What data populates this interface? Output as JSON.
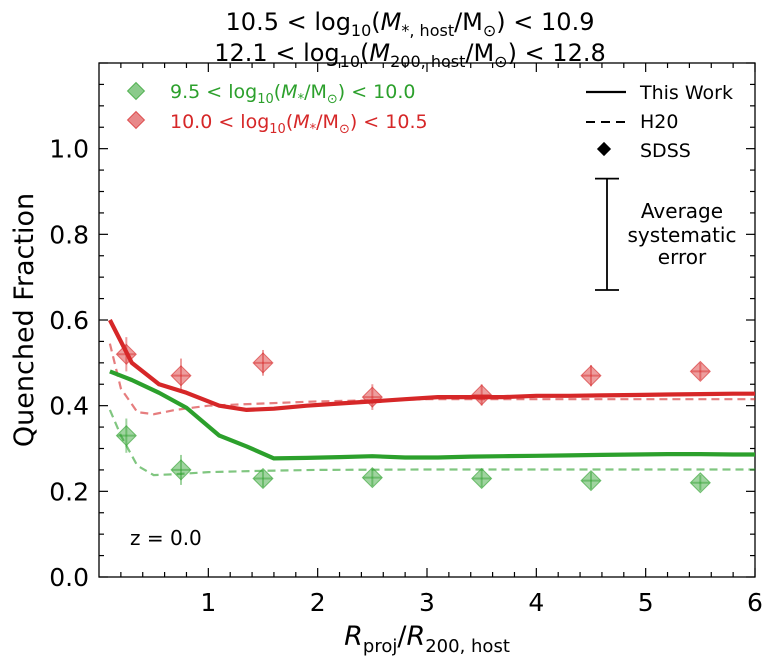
{
  "chart_data": {
    "type": "line",
    "title_lines": [
      "10.5 < log₁₀(M*,host/M⊙) < 10.9",
      "12.1 < log₁₀(M200,host/M⊙) < 12.8"
    ],
    "xlabel": "R_proj / R_200,host",
    "ylabel": "Quenched Fraction",
    "xlim": [
      0.0,
      6.0
    ],
    "ylim": [
      0.0,
      1.2
    ],
    "xticks": [
      1,
      2,
      3,
      4,
      5,
      6
    ],
    "yticks": [
      0.0,
      0.2,
      0.4,
      0.6,
      0.8,
      1.0
    ],
    "annotation": "z = 0.0",
    "error_bar_label": [
      "Average",
      "systematic",
      "error"
    ],
    "error_bar_range": [
      0.67,
      0.93
    ],
    "style_legend": [
      "This Work",
      "H20",
      "SDSS"
    ],
    "series": [
      {
        "name": "9.5 < log10(M*/M⊙) < 10.0",
        "color": "#2ca02c",
        "this_work": {
          "x": [
            0.1,
            0.3,
            0.55,
            0.8,
            1.1,
            1.35,
            1.6,
            1.9,
            2.2,
            2.5,
            2.8,
            3.1,
            3.4,
            3.7,
            4.0,
            4.3,
            4.6,
            4.9,
            5.2,
            5.5,
            5.8,
            6.0
          ],
          "y": [
            0.48,
            0.46,
            0.43,
            0.395,
            0.33,
            0.305,
            0.277,
            0.278,
            0.28,
            0.282,
            0.279,
            0.279,
            0.281,
            0.282,
            0.283,
            0.284,
            0.285,
            0.286,
            0.287,
            0.287,
            0.286,
            0.286
          ]
        },
        "h20": {
          "x": [
            0.1,
            0.2,
            0.35,
            0.5,
            0.7,
            1.0,
            1.5,
            2.0,
            3.0,
            4.0,
            5.0,
            6.0
          ],
          "y": [
            0.39,
            0.33,
            0.26,
            0.238,
            0.24,
            0.245,
            0.248,
            0.25,
            0.251,
            0.251,
            0.251,
            0.251
          ]
        },
        "sdss": {
          "x": [
            0.25,
            0.75,
            1.5,
            2.5,
            3.5,
            4.5,
            5.5
          ],
          "y": [
            0.33,
            0.25,
            0.23,
            0.232,
            0.23,
            0.225,
            0.22
          ],
          "err": [
            0.04,
            0.035,
            0.02,
            0.02,
            0.02,
            0.02,
            0.018
          ]
        }
      },
      {
        "name": "10.0 < log10(M*/M⊙) < 10.5",
        "color": "#d62728",
        "this_work": {
          "x": [
            0.1,
            0.3,
            0.55,
            0.8,
            1.1,
            1.35,
            1.6,
            1.9,
            2.2,
            2.5,
            2.8,
            3.1,
            3.4,
            3.7,
            4.0,
            4.3,
            4.6,
            4.9,
            5.2,
            5.5,
            5.8,
            6.0
          ],
          "y": [
            0.6,
            0.5,
            0.45,
            0.43,
            0.4,
            0.39,
            0.393,
            0.4,
            0.405,
            0.41,
            0.415,
            0.42,
            0.42,
            0.42,
            0.423,
            0.423,
            0.424,
            0.425,
            0.426,
            0.427,
            0.428,
            0.428
          ]
        },
        "h20": {
          "x": [
            0.1,
            0.2,
            0.35,
            0.5,
            0.7,
            1.0,
            1.5,
            2.0,
            3.0,
            4.0,
            5.0,
            6.0
          ],
          "y": [
            0.545,
            0.44,
            0.385,
            0.38,
            0.39,
            0.4,
            0.405,
            0.41,
            0.415,
            0.415,
            0.415,
            0.415
          ]
        },
        "sdss": {
          "x": [
            0.25,
            0.75,
            1.5,
            2.5,
            3.5,
            4.5,
            5.5
          ],
          "y": [
            0.52,
            0.47,
            0.5,
            0.42,
            0.425,
            0.47,
            0.48
          ],
          "err": [
            0.04,
            0.04,
            0.03,
            0.03,
            0.025,
            0.025,
            0.02
          ]
        }
      }
    ]
  }
}
